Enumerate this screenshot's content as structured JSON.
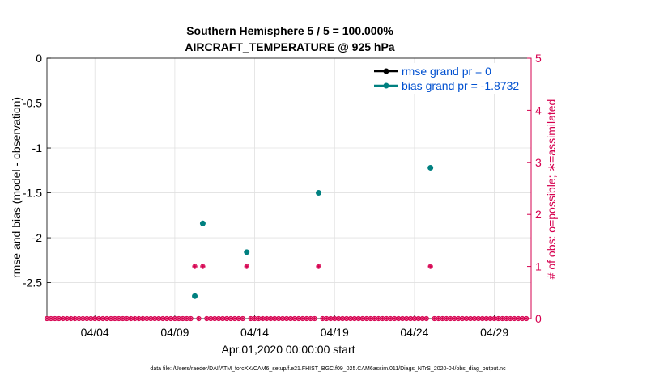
{
  "chart_data": {
    "type": "scatter",
    "title": "Southern Hemisphere 5 / 5 = 100.000%",
    "subtitle": "AIRCRAFT_TEMPERATURE @ 925 hPa",
    "xlabel": "Apr.01,2020 00:00:00 start",
    "ylabel": "rmse and bias (model - observation)",
    "y2label": "# of obs: o=possible; ∗=assimilated",
    "xlim": [
      1,
      31.3
    ],
    "ylim": [
      -2.9,
      0
    ],
    "y2lim": [
      0,
      5
    ],
    "x_ticks": [
      {
        "day": 4,
        "label": "04/04"
      },
      {
        "day": 9,
        "label": "04/09"
      },
      {
        "day": 14,
        "label": "04/14"
      },
      {
        "day": 19,
        "label": "04/19"
      },
      {
        "day": 24,
        "label": "04/24"
      },
      {
        "day": 29,
        "label": "04/29"
      }
    ],
    "y_ticks": [
      {
        "value": 0,
        "label": "0"
      },
      {
        "value": -0.5,
        "label": "-0.5"
      },
      {
        "value": -1,
        "label": "-1"
      },
      {
        "value": -1.5,
        "label": "-1.5"
      },
      {
        "value": -2,
        "label": "-2"
      },
      {
        "value": -2.5,
        "label": "-2.5"
      }
    ],
    "y2_ticks": [
      {
        "value": 0,
        "label": "0"
      },
      {
        "value": 1,
        "label": "1"
      },
      {
        "value": 2,
        "label": "2"
      },
      {
        "value": 3,
        "label": "3"
      },
      {
        "value": 4,
        "label": "4"
      },
      {
        "value": 5,
        "label": "5"
      }
    ],
    "grid": true,
    "legend_position": "top-right",
    "series": [
      {
        "name": "rmse grand pr = 0",
        "color": "#000000",
        "points": []
      },
      {
        "name": "bias grand pr = -1.8732",
        "color": "#008080",
        "points": [
          [
            10.25,
            -2.65
          ],
          [
            10.75,
            -1.84
          ],
          [
            13.5,
            -2.16
          ],
          [
            18.0,
            -1.5
          ],
          [
            25.0,
            -1.22
          ]
        ]
      }
    ],
    "obs_counts": {
      "color": "#d6004f",
      "x_start": 1.0,
      "x_step": 0.25,
      "count": 121,
      "nonzero": [
        [
          10.25,
          1
        ],
        [
          10.75,
          1
        ],
        [
          13.5,
          1
        ],
        [
          18.0,
          1
        ],
        [
          25.0,
          1
        ]
      ]
    },
    "footnote": "data file: /Users/raeder/DAI/ATM_forcXX/CAM6_setup/f.e21.FHIST_BGC.f09_025.CAM6assim.011/Diags_NTrS_2020-04/obs_diag_output.nc"
  }
}
